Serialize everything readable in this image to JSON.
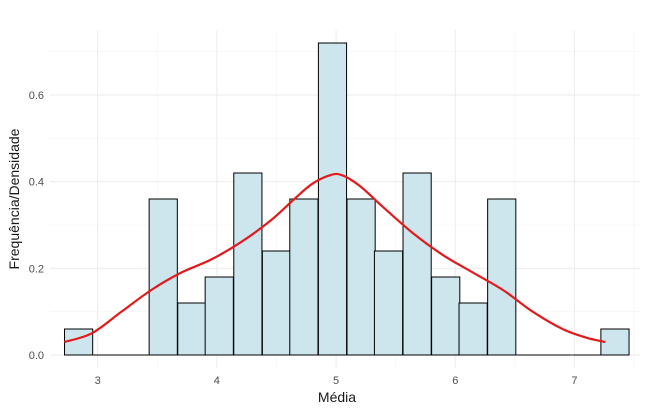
{
  "chart_data": {
    "type": "bar",
    "subtype": "histogram-with-density",
    "title": "",
    "xlabel": "Média",
    "ylabel": "Frequência/Densidade",
    "xlim": [
      2.6,
      7.55
    ],
    "ylim": [
      -0.03,
      0.75
    ],
    "x_ticks": [
      3,
      4,
      5,
      6,
      7
    ],
    "y_ticks": [
      0.0,
      0.2,
      0.4,
      0.6
    ],
    "y_tick_labels": [
      "0.0",
      "0.2",
      "0.4",
      "0.6"
    ],
    "grid": true,
    "legend": "none",
    "bin_width": 0.2364,
    "bins": [
      {
        "x": 2.84,
        "value": 0.06
      },
      {
        "x": 3.08,
        "value": 0.0
      },
      {
        "x": 3.31,
        "value": 0.0
      },
      {
        "x": 3.55,
        "value": 0.36
      },
      {
        "x": 3.79,
        "value": 0.12
      },
      {
        "x": 4.02,
        "value": 0.18
      },
      {
        "x": 4.26,
        "value": 0.42
      },
      {
        "x": 4.5,
        "value": 0.24
      },
      {
        "x": 4.73,
        "value": 0.36
      },
      {
        "x": 4.97,
        "value": 0.72
      },
      {
        "x": 5.21,
        "value": 0.36
      },
      {
        "x": 5.44,
        "value": 0.24
      },
      {
        "x": 5.68,
        "value": 0.42
      },
      {
        "x": 5.92,
        "value": 0.18
      },
      {
        "x": 6.15,
        "value": 0.12
      },
      {
        "x": 6.39,
        "value": 0.36
      },
      {
        "x": 6.63,
        "value": 0.0
      },
      {
        "x": 6.86,
        "value": 0.0
      },
      {
        "x": 7.1,
        "value": 0.0
      },
      {
        "x": 7.34,
        "value": 0.06
      }
    ],
    "density_curve": {
      "x": [
        2.72,
        2.95,
        3.2,
        3.45,
        3.7,
        3.95,
        4.2,
        4.45,
        4.65,
        4.8,
        4.95,
        5.05,
        5.2,
        5.4,
        5.65,
        5.9,
        6.15,
        6.4,
        6.65,
        6.9,
        7.1,
        7.26
      ],
      "y": [
        0.03,
        0.05,
        0.1,
        0.15,
        0.19,
        0.22,
        0.26,
        0.31,
        0.36,
        0.395,
        0.415,
        0.415,
        0.39,
        0.34,
        0.28,
        0.23,
        0.19,
        0.15,
        0.1,
        0.06,
        0.04,
        0.03
      ]
    },
    "colors": {
      "bar_fill": "#cde6ed",
      "bar_stroke": "#000000",
      "density": "#e31a1c",
      "grid_major": "#ebebeb",
      "grid_minor": "#f4f4f4"
    }
  }
}
